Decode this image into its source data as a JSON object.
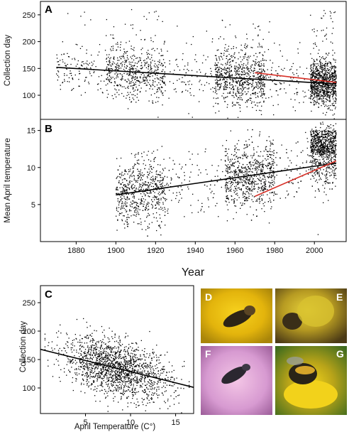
{
  "colors": {
    "points": "#000000",
    "trend_black": "#000000",
    "trend_red": "#d73027",
    "photo_letter": "#ffffff",
    "panel_letter": "#000000"
  },
  "chart_data": [
    {
      "panel": "A",
      "type": "scatter",
      "ylabel": "Collection day",
      "xlabel": "Year",
      "xlim": [
        1862,
        2016
      ],
      "ylim": [
        55,
        275
      ],
      "x_ticks": [
        1880,
        1900,
        1920,
        1940,
        1960,
        1980,
        2000
      ],
      "y_ticks": [
        100,
        150,
        200,
        250
      ],
      "grid": false,
      "point_summary": {
        "year_range": [
          1870,
          2011
        ],
        "day_range": [
          65,
          275
        ],
        "densest_years": [
          2000,
          2011
        ],
        "densest_day_range": [
          80,
          160
        ]
      },
      "trend_lines": [
        {
          "color": "black",
          "x": [
            1870,
            2011
          ],
          "y": [
            152,
            121
          ]
        },
        {
          "color": "red",
          "x": [
            1970,
            2011
          ],
          "y": [
            142,
            124
          ]
        }
      ]
    },
    {
      "panel": "B",
      "type": "scatter",
      "ylabel": "Mean April temperature",
      "xlabel": "Year",
      "xlim": [
        1862,
        2016
      ],
      "ylim": [
        0,
        16.5
      ],
      "x_ticks": [
        1880,
        1900,
        1920,
        1940,
        1960,
        1980,
        2000
      ],
      "y_ticks": [
        5,
        10,
        15
      ],
      "grid": false,
      "point_summary": {
        "year_range": [
          1900,
          2011
        ],
        "temperature_range": [
          0.8,
          16
        ],
        "densest_years": [
          1998,
          2011
        ],
        "densest_temperature_range": [
          7,
          15
        ]
      },
      "trend_lines": [
        {
          "color": "black",
          "x": [
            1900,
            2011
          ],
          "y": [
            6.3,
            10.6
          ]
        },
        {
          "color": "red",
          "x": [
            1970,
            2011
          ],
          "y": [
            6.1,
            10.9
          ]
        }
      ]
    },
    {
      "panel": "C",
      "type": "scatter",
      "ylabel": "Collection day",
      "xlabel": "April Temperature (C°)",
      "xlim": [
        0,
        17
      ],
      "ylim": [
        55,
        280
      ],
      "x_ticks": [
        5,
        10,
        15
      ],
      "y_ticks": [
        100,
        150,
        200,
        250
      ],
      "grid": false,
      "point_summary": {
        "temperature_range": [
          0.5,
          16.5
        ],
        "day_range": [
          62,
          275
        ],
        "densest_temperature_range": [
          5,
          14
        ],
        "densest_day_range": [
          90,
          180
        ]
      },
      "trend_lines": [
        {
          "color": "black",
          "x": [
            0,
            17
          ],
          "y": [
            168,
            101
          ]
        }
      ]
    }
  ],
  "figure": {
    "panel_letters": [
      "A",
      "B",
      "C"
    ],
    "year_axis_label": "Year"
  },
  "photos": [
    {
      "letter": "D",
      "subject": "bee on yellow flower"
    },
    {
      "letter": "E",
      "subject": "bee on yellow flower head"
    },
    {
      "letter": "F",
      "subject": "bee on pink flower"
    },
    {
      "letter": "G",
      "subject": "bumblebee on dandelion"
    }
  ]
}
